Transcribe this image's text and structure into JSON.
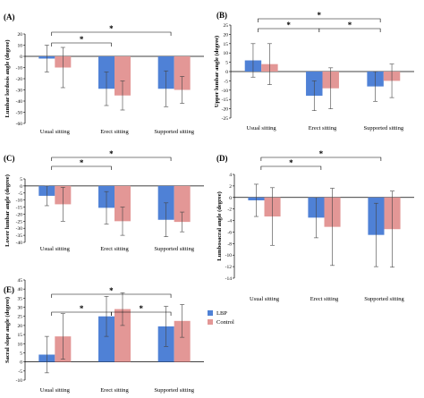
{
  "colors": {
    "lbp": "#4f81d6",
    "control": "#e39796",
    "error": "#444444",
    "axis": "#000000"
  },
  "legend": [
    {
      "label": "LBP",
      "color": "#4f81d6"
    },
    {
      "label": "Control",
      "color": "#e39796"
    }
  ],
  "chart_data": [
    {
      "type": "bar",
      "panel_label": "(A)",
      "ylabel": "Lumbar lordosis angle (degree)",
      "ylim": [
        -60,
        20
      ],
      "yticks": [
        -60,
        -50,
        -40,
        -30,
        -20,
        -10,
        0,
        10,
        20
      ],
      "categories": [
        "Usual sitting",
        "Erect sitting",
        "Supported  sitting"
      ],
      "series": [
        {
          "name": "LBP",
          "values": [
            -2,
            -29,
            -29
          ],
          "errors": [
            12,
            15,
            16
          ]
        },
        {
          "name": "Control",
          "values": [
            -10,
            -35,
            -30
          ],
          "errors": [
            18,
            13,
            12
          ]
        }
      ],
      "significance": [
        {
          "from": 0,
          "to": 1,
          "label": "*"
        },
        {
          "from": 0,
          "to": 2,
          "label": "*"
        }
      ]
    },
    {
      "type": "bar",
      "panel_label": "(B)",
      "ylabel": "Upper lumbar angle (degree)",
      "ylim": [
        -25,
        25
      ],
      "yticks": [
        -25,
        -20,
        -15,
        -10,
        -5,
        0,
        5,
        10,
        15,
        20,
        25
      ],
      "categories": [
        "Usual sitting",
        "Erect sitting",
        "Supported sitting"
      ],
      "series": [
        {
          "name": "LBP",
          "values": [
            6,
            -13,
            -8
          ],
          "errors": [
            9,
            8,
            8
          ]
        },
        {
          "name": "Control",
          "values": [
            4,
            -9,
            -5
          ],
          "errors": [
            11,
            11,
            9
          ]
        }
      ],
      "significance": [
        {
          "from": 0,
          "to": 1,
          "label": "*"
        },
        {
          "from": 1,
          "to": 2,
          "label": "*"
        },
        {
          "from": 0,
          "to": 2,
          "label": "*"
        }
      ]
    },
    {
      "type": "bar",
      "panel_label": "(C)",
      "ylabel": "Lower lumbar angle (degree)",
      "ylim": [
        -40,
        5
      ],
      "yticks": [
        -40,
        -35,
        -30,
        -25,
        -20,
        -15,
        -10,
        -5,
        0,
        5
      ],
      "categories": [
        "Usual sitting",
        "Erect sitting",
        "Supported sitting"
      ],
      "series": [
        {
          "name": "LBP",
          "values": [
            -7,
            -15.5,
            -24
          ],
          "errors": [
            7,
            11.5,
            12
          ]
        },
        {
          "name": "Control",
          "values": [
            -13,
            -25,
            -25.5
          ],
          "errors": [
            12,
            10,
            7
          ]
        }
      ],
      "significance": [
        {
          "from": 0,
          "to": 1,
          "label": "*"
        },
        {
          "from": 0,
          "to": 2,
          "label": "*"
        }
      ]
    },
    {
      "type": "bar",
      "panel_label": "(D)",
      "ylabel": "Lumbosacral angle (degree)",
      "ylim": [
        -14,
        4
      ],
      "yticks": [
        -14,
        -12,
        -10,
        -8,
        -6,
        -4,
        -2,
        0,
        2,
        4
      ],
      "categories": [
        "Usual sitting",
        "Erect sitting",
        "Supported sitting"
      ],
      "series": [
        {
          "name": "LBP",
          "values": [
            -0.5,
            -3.5,
            -6.5
          ],
          "errors": [
            2.8,
            3.5,
            5.5
          ]
        },
        {
          "name": "Control",
          "values": [
            -3.3,
            -5.1,
            -5.5
          ],
          "errors": [
            5,
            6.7,
            6.6
          ]
        }
      ],
      "significance": [
        {
          "from": 0,
          "to": 1,
          "label": "*"
        },
        {
          "from": 0,
          "to": 2,
          "label": "*"
        }
      ]
    },
    {
      "type": "bar",
      "panel_label": "(E)",
      "ylabel": "Sacral slope angle (degree)",
      "ylim": [
        -10,
        45
      ],
      "yticks": [
        -10,
        -5,
        0,
        5,
        10,
        15,
        20,
        25,
        30,
        35,
        40,
        45
      ],
      "categories": [
        "Usual sitting",
        "Erect sitting",
        "Supported sitting"
      ],
      "series": [
        {
          "name": "LBP",
          "values": [
            4,
            25,
            19.5
          ],
          "errors": [
            10,
            11,
            11
          ]
        },
        {
          "name": "Control",
          "values": [
            14,
            29,
            22.5
          ],
          "errors": [
            12.5,
            9,
            9
          ]
        }
      ],
      "significance": [
        {
          "from": 0,
          "to": 1,
          "label": "*"
        },
        {
          "from": 1,
          "to": 2,
          "label": "*"
        },
        {
          "from": 0,
          "to": 2,
          "label": "*"
        }
      ]
    }
  ]
}
